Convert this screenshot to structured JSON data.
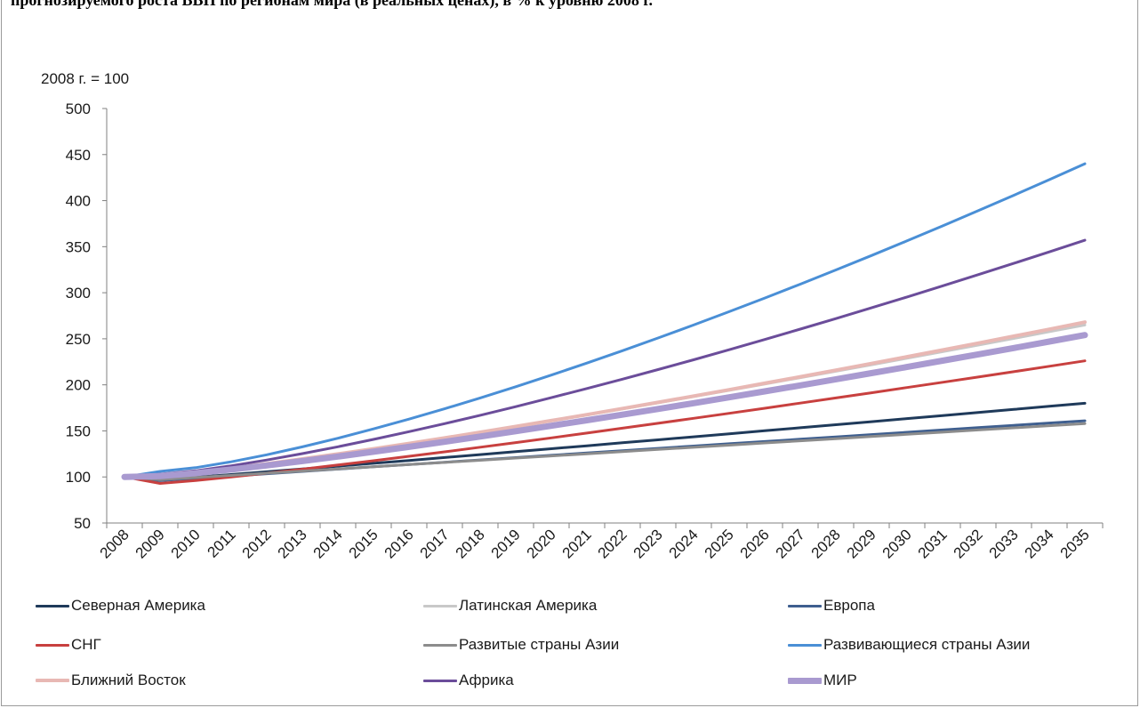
{
  "header_fragment": "прогнозируемого роста ВВП по регионам мира (в реальных ценах), в % к уровню 2008 г.",
  "chart_data": {
    "type": "line",
    "unit_label": "2008 г. = 100",
    "ylim": [
      50,
      500
    ],
    "yticks": [
      50,
      100,
      150,
      200,
      250,
      300,
      350,
      400,
      450,
      500
    ],
    "grid": false,
    "legend_position": "bottom",
    "x": [
      "2008",
      "2009",
      "2010",
      "2011",
      "2012",
      "2013",
      "2014",
      "2015",
      "2016",
      "2017",
      "2018",
      "2019",
      "2020",
      "2021",
      "2022",
      "2023",
      "2024",
      "2025",
      "2026",
      "2027",
      "2028",
      "2029",
      "2030",
      "2031",
      "2032",
      "2033",
      "2034",
      "2035"
    ],
    "series": [
      {
        "name": "Северная Америка",
        "color": "#1f3a5a",
        "width": 3,
        "start": 100,
        "dip": 97,
        "end": 180,
        "curve": 1.05
      },
      {
        "name": "Латинская Америка",
        "color": "#c8c8c8",
        "width": 3,
        "start": 100,
        "dip": 99,
        "end": 265,
        "curve": 1.15
      },
      {
        "name": "Европа",
        "color": "#3f5f8f",
        "width": 3,
        "start": 100,
        "dip": 96,
        "end": 161,
        "curve": 1.0
      },
      {
        "name": "СНГ",
        "color": "#c8403f",
        "width": 3,
        "start": 100,
        "dip": 93,
        "end": 226,
        "curve": 1.15
      },
      {
        "name": "Развитые страны Азии",
        "color": "#8c8c8c",
        "width": 3,
        "start": 100,
        "dip": 97,
        "end": 158,
        "curve": 1.0
      },
      {
        "name": "Развивающиеся страны Азии",
        "color": "#4a8fd6",
        "width": 3,
        "start": 100,
        "dip": 106,
        "end": 440,
        "curve": 1.35
      },
      {
        "name": "Ближний Восток",
        "color": "#e8b8b4",
        "width": 4,
        "start": 100,
        "dip": 102,
        "end": 268,
        "curve": 1.2
      },
      {
        "name": "Африка",
        "color": "#6b4d9a",
        "width": 3,
        "start": 100,
        "dip": 103,
        "end": 357,
        "curve": 1.3
      },
      {
        "name": "МИР",
        "color": "#a99ad0",
        "width": 7,
        "start": 100,
        "dip": 101,
        "end": 254,
        "curve": 1.2
      }
    ]
  }
}
